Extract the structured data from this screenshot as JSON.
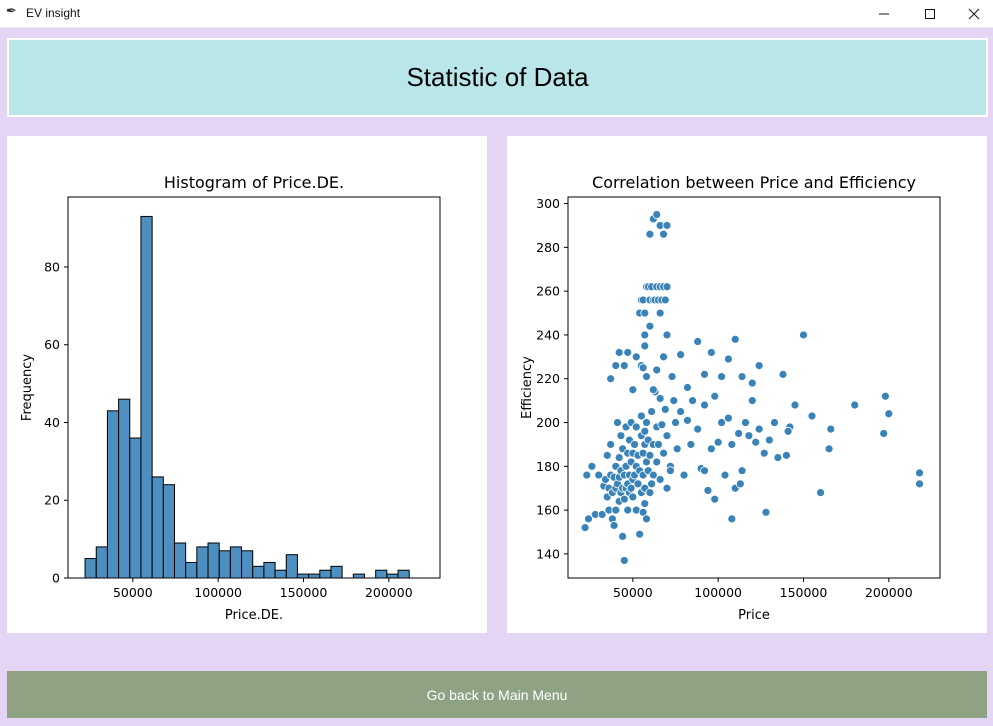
{
  "window": {
    "title": "EV insight",
    "minimize_icon": "minimize-icon",
    "maximize_icon": "maximize-icon",
    "close_icon": "close-icon"
  },
  "header": {
    "title": "Statistic of Data"
  },
  "footer": {
    "back_label": "Go back to Main Menu"
  },
  "colors": {
    "background": "#e4d5f5",
    "header": "#b9e6e8",
    "button": "#8fa384",
    "series": "#3a83b9"
  },
  "chart_data": [
    {
      "type": "bar",
      "title": "Histogram of Price.DE.",
      "xlabel": "Price.DE.",
      "ylabel": "Frequency",
      "xlim": [
        12000,
        230000
      ],
      "ylim": [
        0,
        98
      ],
      "xticks": [
        50000,
        100000,
        150000,
        200000
      ],
      "xtick_labels": [
        "50000",
        "100000",
        "150000",
        "200000"
      ],
      "yticks": [
        0,
        20,
        40,
        60,
        80
      ],
      "ytick_labels": [
        "0",
        "20",
        "40",
        "60",
        "80"
      ],
      "bin_start": 22000,
      "bin_width": 6550,
      "values": [
        5,
        8,
        43,
        46,
        36,
        93,
        26,
        24,
        9,
        4,
        8,
        9,
        7,
        8,
        7,
        3,
        4,
        2,
        6,
        1,
        1,
        2,
        3,
        0,
        1,
        0,
        2,
        1,
        2,
        0
      ]
    },
    {
      "type": "scatter",
      "title": "Correlation between Price and Efficiency",
      "xlabel": "Price",
      "ylabel": "Efficiency",
      "xlim": [
        12000,
        230000
      ],
      "ylim": [
        129,
        303
      ],
      "xticks": [
        50000,
        100000,
        150000,
        200000
      ],
      "xtick_labels": [
        "50000",
        "100000",
        "150000",
        "200000"
      ],
      "yticks": [
        140,
        160,
        180,
        200,
        220,
        240,
        260,
        280,
        300
      ],
      "ytick_labels": [
        "140",
        "160",
        "180",
        "200",
        "220",
        "240",
        "260",
        "280",
        "300"
      ],
      "points": [
        [
          22000,
          152
        ],
        [
          24000,
          156
        ],
        [
          26000,
          180
        ],
        [
          23000,
          176
        ],
        [
          28000,
          158
        ],
        [
          30000,
          176
        ],
        [
          32000,
          158
        ],
        [
          33000,
          171
        ],
        [
          34000,
          174
        ],
        [
          35000,
          166
        ],
        [
          35000,
          185
        ],
        [
          36000,
          170
        ],
        [
          36000,
          160
        ],
        [
          37000,
          176
        ],
        [
          37000,
          190
        ],
        [
          38000,
          168
        ],
        [
          38000,
          156
        ],
        [
          39000,
          175
        ],
        [
          39000,
          153
        ],
        [
          40000,
          170
        ],
        [
          40000,
          180
        ],
        [
          40000,
          160
        ],
        [
          41000,
          200
        ],
        [
          41000,
          172
        ],
        [
          42000,
          175
        ],
        [
          42000,
          164
        ],
        [
          42000,
          184
        ],
        [
          43000,
          168
        ],
        [
          43000,
          178
        ],
        [
          43000,
          194
        ],
        [
          44000,
          170
        ],
        [
          44000,
          148
        ],
        [
          44000,
          188
        ],
        [
          45000,
          165
        ],
        [
          45000,
          176
        ],
        [
          46000,
          170
        ],
        [
          46000,
          180
        ],
        [
          46000,
          198
        ],
        [
          47000,
          186
        ],
        [
          47000,
          172
        ],
        [
          47000,
          160
        ],
        [
          48000,
          168
        ],
        [
          48000,
          192
        ],
        [
          48000,
          176
        ],
        [
          49000,
          182
        ],
        [
          49000,
          170
        ],
        [
          49000,
          200
        ],
        [
          50000,
          186
        ],
        [
          50000,
          174
        ],
        [
          50000,
          166
        ],
        [
          51000,
          176
        ],
        [
          51000,
          190
        ],
        [
          52000,
          180
        ],
        [
          52000,
          160
        ],
        [
          52000,
          198
        ],
        [
          53000,
          172
        ],
        [
          53000,
          185
        ],
        [
          54000,
          178
        ],
        [
          54000,
          149
        ],
        [
          55000,
          194
        ],
        [
          55000,
          168
        ],
        [
          55000,
          203
        ],
        [
          56000,
          186
        ],
        [
          56000,
          176
        ],
        [
          56000,
          159
        ],
        [
          57000,
          190
        ],
        [
          57000,
          196
        ],
        [
          57000,
          170
        ],
        [
          57000,
          163
        ],
        [
          58000,
          200
        ],
        [
          58000,
          182
        ],
        [
          58000,
          156
        ],
        [
          59000,
          192
        ],
        [
          59000,
          178
        ],
        [
          60000,
          185
        ],
        [
          60000,
          168
        ],
        [
          61000,
          205
        ],
        [
          61000,
          172
        ],
        [
          62000,
          190
        ],
        [
          62000,
          176
        ],
        [
          63000,
          214
        ],
        [
          64000,
          198
        ],
        [
          64000,
          182
        ],
        [
          65000,
          190
        ],
        [
          66000,
          211
        ],
        [
          66000,
          174
        ],
        [
          67000,
          199
        ],
        [
          68000,
          186
        ],
        [
          69000,
          206
        ],
        [
          70000,
          170
        ],
        [
          70000,
          194
        ],
        [
          72000,
          180
        ],
        [
          74000,
          210
        ],
        [
          75000,
          200
        ],
        [
          76000,
          188
        ],
        [
          78000,
          205
        ],
        [
          80000,
          176
        ],
        [
          82000,
          201
        ],
        [
          85000,
          210
        ],
        [
          88000,
          197
        ],
        [
          90000,
          179
        ],
        [
          92000,
          208
        ],
        [
          94000,
          169
        ],
        [
          96000,
          188
        ],
        [
          98000,
          212
        ],
        [
          100000,
          191
        ],
        [
          102000,
          200
        ],
        [
          104000,
          176
        ],
        [
          106000,
          202
        ],
        [
          108000,
          190
        ],
        [
          110000,
          170
        ],
        [
          112000,
          195
        ],
        [
          114000,
          178
        ],
        [
          116000,
          200
        ],
        [
          118000,
          194
        ],
        [
          120000,
          210
        ],
        [
          122000,
          191
        ],
        [
          124000,
          197
        ],
        [
          127000,
          186
        ],
        [
          130000,
          192
        ],
        [
          133000,
          200
        ],
        [
          138000,
          222
        ],
        [
          140000,
          185
        ],
        [
          142000,
          198
        ],
        [
          145000,
          208
        ],
        [
          150000,
          240
        ],
        [
          155000,
          203
        ],
        [
          160000,
          168
        ],
        [
          165000,
          188
        ],
        [
          166000,
          197
        ],
        [
          180000,
          208
        ],
        [
          197000,
          195
        ],
        [
          198000,
          212
        ],
        [
          200000,
          204
        ],
        [
          218000,
          172
        ],
        [
          218000,
          177
        ],
        [
          37000,
          220
        ],
        [
          40000,
          226
        ],
        [
          42000,
          232
        ],
        [
          45000,
          226
        ],
        [
          47000,
          232
        ],
        [
          50000,
          215
        ],
        [
          52000,
          230
        ],
        [
          55000,
          226
        ],
        [
          56000,
          225
        ],
        [
          57000,
          235
        ],
        [
          57000,
          240
        ],
        [
          58000,
          221
        ],
        [
          60000,
          244
        ],
        [
          62000,
          215
        ],
        [
          64000,
          224
        ],
        [
          66000,
          250
        ],
        [
          68000,
          230
        ],
        [
          70000,
          240
        ],
        [
          73000,
          221
        ],
        [
          78000,
          231
        ],
        [
          82000,
          216
        ],
        [
          88000,
          237
        ],
        [
          92000,
          222
        ],
        [
          96000,
          232
        ],
        [
          102000,
          221
        ],
        [
          106000,
          229
        ],
        [
          110000,
          238
        ],
        [
          114000,
          221
        ],
        [
          120000,
          218
        ],
        [
          124000,
          226
        ],
        [
          54000,
          250
        ],
        [
          55000,
          256
        ],
        [
          56000,
          256
        ],
        [
          57000,
          250
        ],
        [
          58000,
          262
        ],
        [
          59000,
          262
        ],
        [
          60000,
          256
        ],
        [
          61000,
          262
        ],
        [
          62000,
          256
        ],
        [
          63000,
          256
        ],
        [
          64000,
          262
        ],
        [
          65000,
          256
        ],
        [
          66000,
          262
        ],
        [
          67000,
          256
        ],
        [
          68000,
          262
        ],
        [
          69000,
          256
        ],
        [
          70000,
          262
        ],
        [
          60000,
          286
        ],
        [
          62000,
          293
        ],
        [
          64000,
          295
        ],
        [
          66000,
          290
        ],
        [
          68000,
          286
        ],
        [
          70000,
          290
        ],
        [
          45000,
          137
        ],
        [
          72000,
          178
        ],
        [
          84000,
          190
        ],
        [
          92000,
          178
        ],
        [
          98000,
          165
        ],
        [
          108000,
          156
        ],
        [
          113000,
          172
        ],
        [
          128000,
          159
        ],
        [
          135000,
          184
        ],
        [
          141000,
          196
        ]
      ]
    }
  ]
}
